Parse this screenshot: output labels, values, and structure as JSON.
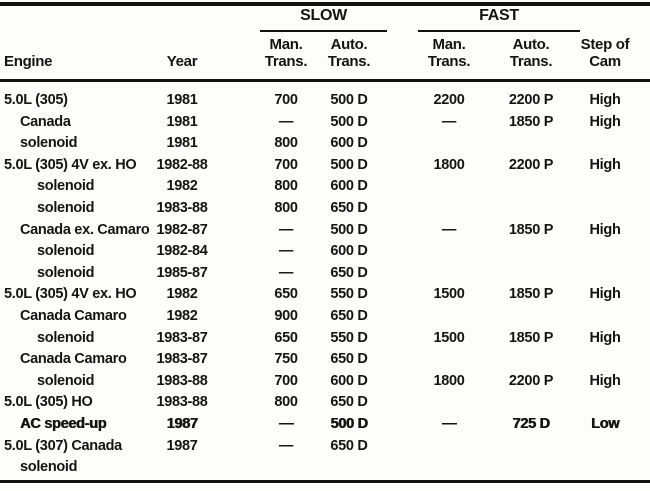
{
  "page": {
    "background_color": "#fdfdfc",
    "text_color": "#141414",
    "rule_color": "#111111"
  },
  "table": {
    "groups": {
      "slow": "SLOW",
      "fast": "FAST"
    },
    "headers": {
      "engine": "Engine",
      "year": "Year",
      "slow_man_l1": "Man.",
      "slow_man_l2": "Trans.",
      "slow_auto_l1": "Auto.",
      "slow_auto_l2": "Trans.",
      "fast_man_l1": "Man.",
      "fast_man_l2": "Trans.",
      "fast_auto_l1": "Auto.",
      "fast_auto_l2": "Trans.",
      "cam_l1": "Step of",
      "cam_l2": "Cam"
    },
    "rows": [
      {
        "indent": 0,
        "bold": false,
        "engine": "5.0L (305)",
        "year": "1981",
        "slow_man": "700",
        "slow_auto": "500 D",
        "fast_man": "2200",
        "fast_auto": "2200 P",
        "cam": "High"
      },
      {
        "indent": 1,
        "bold": false,
        "engine": "Canada",
        "year": "1981",
        "slow_man": "—",
        "slow_auto": "500 D",
        "fast_man": "—",
        "fast_auto": "1850 P",
        "cam": "High"
      },
      {
        "indent": 1,
        "bold": false,
        "engine": "solenoid",
        "year": "1981",
        "slow_man": "800",
        "slow_auto": "600 D",
        "fast_man": "",
        "fast_auto": "",
        "cam": ""
      },
      {
        "indent": 0,
        "bold": false,
        "engine": "5.0L (305) 4V ex. HO",
        "year": "1982-88",
        "slow_man": "700",
        "slow_auto": "500 D",
        "fast_man": "1800",
        "fast_auto": "2200 P",
        "cam": "High"
      },
      {
        "indent": 2,
        "bold": false,
        "engine": "solenoid",
        "year": "1982",
        "slow_man": "800",
        "slow_auto": "600 D",
        "fast_man": "",
        "fast_auto": "",
        "cam": ""
      },
      {
        "indent": 2,
        "bold": false,
        "engine": "solenoid",
        "year": "1983-88",
        "slow_man": "800",
        "slow_auto": "650 D",
        "fast_man": "",
        "fast_auto": "",
        "cam": ""
      },
      {
        "indent": 1,
        "bold": false,
        "engine": "Canada ex. Camaro",
        "year": "1982-87",
        "slow_man": "—",
        "slow_auto": "500 D",
        "fast_man": "—",
        "fast_auto": "1850 P",
        "cam": "High"
      },
      {
        "indent": 2,
        "bold": false,
        "engine": "solenoid",
        "year": "1982-84",
        "slow_man": "—",
        "slow_auto": "600 D",
        "fast_man": "",
        "fast_auto": "",
        "cam": ""
      },
      {
        "indent": 2,
        "bold": false,
        "engine": "solenoid",
        "year": "1985-87",
        "slow_man": "—",
        "slow_auto": "650 D",
        "fast_man": "",
        "fast_auto": "",
        "cam": ""
      },
      {
        "indent": 0,
        "bold": false,
        "engine": "5.0L (305) 4V ex. HO",
        "year": "1982",
        "slow_man": "650",
        "slow_auto": "550 D",
        "fast_man": "1500",
        "fast_auto": "1850 P",
        "cam": "High"
      },
      {
        "indent": 1,
        "bold": false,
        "engine": "Canada Camaro",
        "year": "1982",
        "slow_man": "900",
        "slow_auto": "650 D",
        "fast_man": "",
        "fast_auto": "",
        "cam": ""
      },
      {
        "indent": 2,
        "bold": false,
        "engine": "solenoid",
        "year": "1983-87",
        "slow_man": "650",
        "slow_auto": "550 D",
        "fast_man": "1500",
        "fast_auto": "1850 P",
        "cam": "High"
      },
      {
        "indent": 1,
        "bold": false,
        "engine": "Canada Camaro",
        "year": "1983-87",
        "slow_man": "750",
        "slow_auto": "650 D",
        "fast_man": "",
        "fast_auto": "",
        "cam": ""
      },
      {
        "indent": 2,
        "bold": false,
        "engine": "solenoid",
        "year": "1983-88",
        "slow_man": "700",
        "slow_auto": "600 D",
        "fast_man": "1800",
        "fast_auto": "2200 P",
        "cam": "High"
      },
      {
        "indent": 0,
        "bold": false,
        "engine": "5.0L (305) HO",
        "year": "1983-88",
        "slow_man": "800",
        "slow_auto": "650 D",
        "fast_man": "",
        "fast_auto": "",
        "cam": ""
      },
      {
        "indent": 1,
        "bold": true,
        "engine": "AC speed-up",
        "year": "1987",
        "slow_man": "—",
        "slow_auto": "500 D",
        "fast_man": "—",
        "fast_auto": "725 D",
        "cam": "Low"
      },
      {
        "indent": 0,
        "bold": false,
        "engine": "5.0L (307) Canada",
        "year": "1987",
        "slow_man": "—",
        "slow_auto": "650 D",
        "fast_man": "",
        "fast_auto": "",
        "cam": ""
      },
      {
        "indent": 1,
        "bold": false,
        "engine": "solenoid",
        "year": "",
        "slow_man": "",
        "slow_auto": "",
        "fast_man": "",
        "fast_auto": "",
        "cam": ""
      }
    ]
  }
}
